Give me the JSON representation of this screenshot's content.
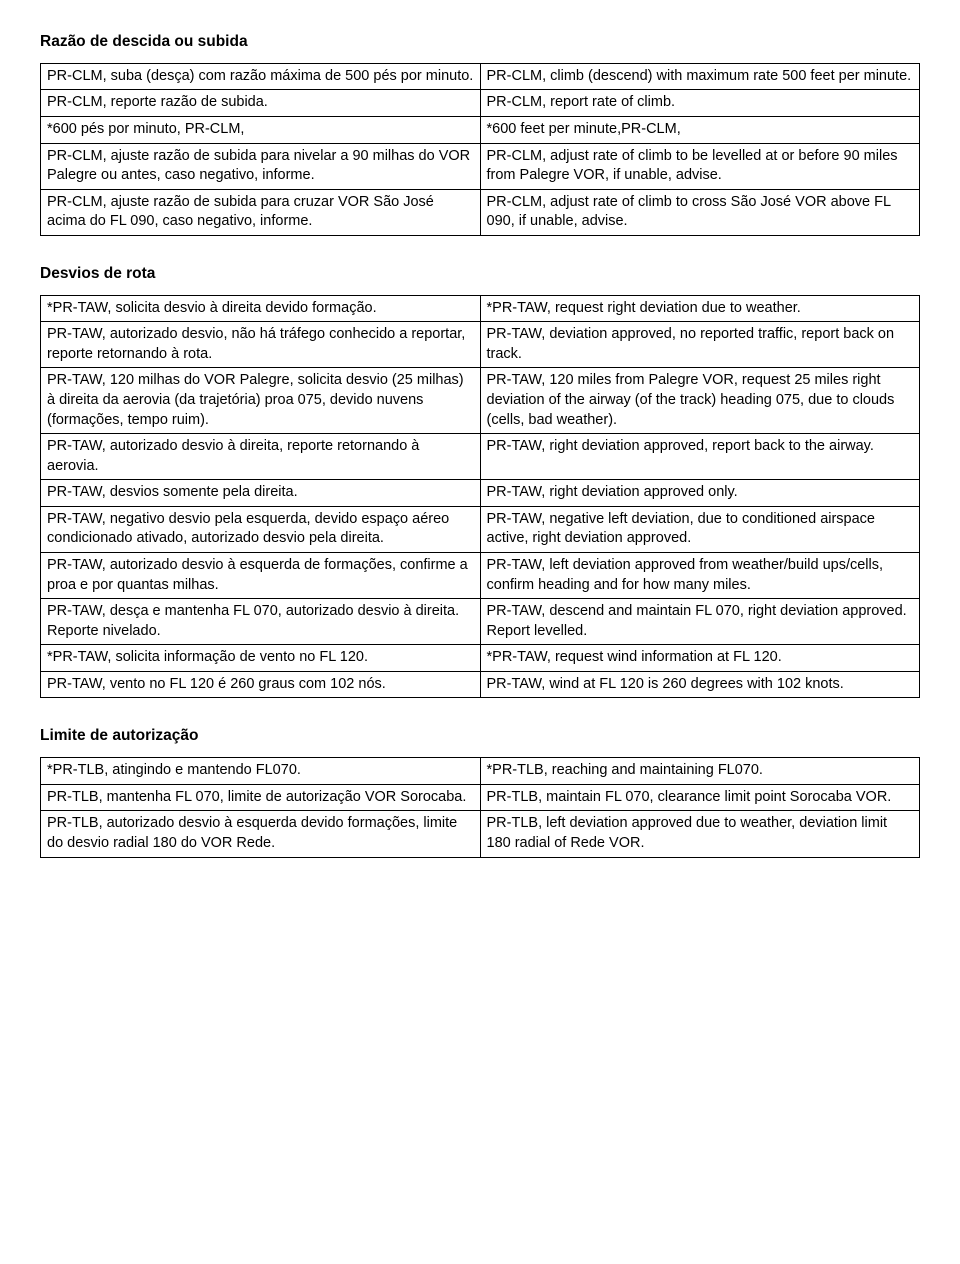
{
  "section1": {
    "title": "Razão de descida ou subida",
    "rows": [
      {
        "pt": "PR-CLM, suba (desça) com razão máxima de 500 pés por minuto.",
        "en": "PR-CLM, climb (descend) with maximum rate 500 feet per minute."
      },
      {
        "pt": "PR-CLM, reporte razão de subida.",
        "en": "PR-CLM, report rate of climb."
      },
      {
        "pt": "*600 pés por minuto, PR-CLM,",
        "en": "*600 feet per minute,PR-CLM,"
      },
      {
        "pt": "PR-CLM, ajuste razão de subida para nivelar a 90 milhas do VOR Palegre ou antes, caso negativo, informe.",
        "en": "PR-CLM, adjust rate of climb to be levelled at or before 90 miles from Palegre VOR, if unable, advise."
      },
      {
        "pt": "PR-CLM, ajuste razão de subida para cruzar VOR São José acima do FL 090, caso negativo, informe.",
        "en": "PR-CLM, adjust rate of climb to cross São José VOR above FL 090, if unable, advise."
      }
    ]
  },
  "section2": {
    "title": "Desvios de rota",
    "rows": [
      {
        "pt": "*PR-TAW, solicita desvio à direita devido formação.",
        "en": "*PR-TAW, request right deviation due to weather."
      },
      {
        "pt": "PR-TAW, autorizado desvio, não há tráfego conhecido a reportar, reporte retornando à rota.",
        "en": "PR-TAW, deviation approved, no reported traffic, report back on track."
      },
      {
        "pt": "PR-TAW, 120 milhas do VOR Palegre, solicita desvio (25 milhas) à direita da aerovia (da trajetória) proa 075, devido nuvens (formações, tempo ruim).",
        "en": "PR-TAW, 120 miles from Palegre VOR, request 25 miles right deviation of the airway (of the track) heading 075, due to clouds (cells, bad weather)."
      },
      {
        "pt": "PR-TAW, autorizado desvio à direita, reporte retornando à aerovia.",
        "en": "PR-TAW, right deviation approved, report back to the airway."
      },
      {
        "pt": "PR-TAW, desvios somente pela direita.",
        "en": "PR-TAW, right deviation approved only."
      },
      {
        "pt": "PR-TAW, negativo desvio pela esquerda, devido espaço aéreo condicionado ativado, autorizado desvio pela direita.",
        "en": "PR-TAW, negative left deviation, due to conditioned airspace active, right deviation approved."
      },
      {
        "pt": "PR-TAW, autorizado desvio à esquerda de formações, confirme a proa e por quantas milhas.",
        "en": "PR-TAW, left deviation approved from weather/build ups/cells, confirm heading and for how many miles."
      },
      {
        "pt": "PR-TAW, desça e mantenha FL 070, autorizado desvio à direita. Reporte nivelado.",
        "en": "PR-TAW, descend and maintain FL 070, right deviation approved. Report levelled."
      },
      {
        "pt": "*PR-TAW, solicita informação de vento no FL 120.",
        "en": "*PR-TAW, request wind information at FL 120."
      },
      {
        "pt": "PR-TAW, vento no FL 120 é 260 graus com 102 nós.",
        "en": "PR-TAW, wind at FL 120 is 260 degrees with 102 knots."
      }
    ]
  },
  "section3": {
    "title": "Limite de autorização",
    "rows": [
      {
        "pt": "*PR-TLB, atingindo e mantendo FL070.",
        "en": "*PR-TLB, reaching and maintaining FL070."
      },
      {
        "pt": "PR-TLB, mantenha FL 070, limite de autorização VOR Sorocaba.",
        "en": "PR-TLB, maintain FL 070, clearance limit point Sorocaba VOR."
      },
      {
        "pt": "PR-TLB, autorizado desvio à esquerda devido formações, limite do desvio radial 180 do VOR Rede.",
        "en": "PR-TLB, left deviation approved due to weather, deviation limit 180 radial of Rede VOR."
      }
    ]
  }
}
